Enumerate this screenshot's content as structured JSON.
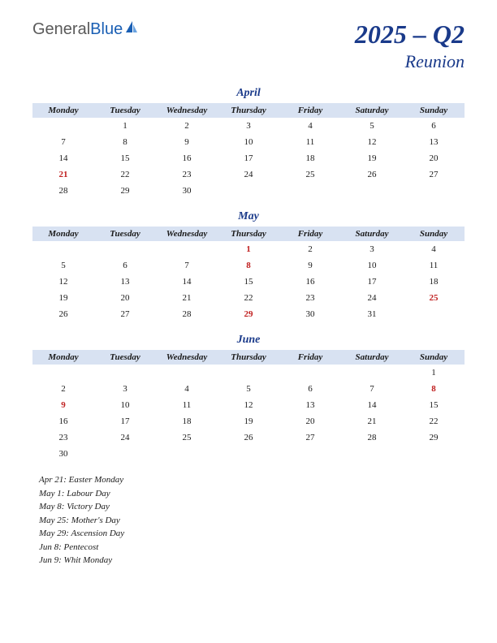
{
  "logo": {
    "part1": "General",
    "part2": "Blue"
  },
  "header": {
    "quarter": "2025 – Q2",
    "region": "Reunion"
  },
  "weekdays": [
    "Monday",
    "Tuesday",
    "Wednesday",
    "Thursday",
    "Friday",
    "Saturday",
    "Sunday"
  ],
  "months": [
    {
      "name": "April",
      "weeks": [
        [
          null,
          1,
          2,
          3,
          4,
          5,
          6
        ],
        [
          7,
          8,
          9,
          10,
          11,
          12,
          13
        ],
        [
          14,
          15,
          16,
          17,
          18,
          19,
          20
        ],
        [
          21,
          22,
          23,
          24,
          25,
          26,
          27
        ],
        [
          28,
          29,
          30,
          null,
          null,
          null,
          null
        ]
      ],
      "holidays": [
        21
      ]
    },
    {
      "name": "May",
      "weeks": [
        [
          null,
          null,
          null,
          1,
          2,
          3,
          4
        ],
        [
          5,
          6,
          7,
          8,
          9,
          10,
          11
        ],
        [
          12,
          13,
          14,
          15,
          16,
          17,
          18
        ],
        [
          19,
          20,
          21,
          22,
          23,
          24,
          25
        ],
        [
          26,
          27,
          28,
          29,
          30,
          31,
          null
        ]
      ],
      "holidays": [
        1,
        8,
        25,
        29
      ]
    },
    {
      "name": "June",
      "weeks": [
        [
          null,
          null,
          null,
          null,
          null,
          null,
          1
        ],
        [
          2,
          3,
          4,
          5,
          6,
          7,
          8
        ],
        [
          9,
          10,
          11,
          12,
          13,
          14,
          15
        ],
        [
          16,
          17,
          18,
          19,
          20,
          21,
          22
        ],
        [
          23,
          24,
          25,
          26,
          27,
          28,
          29
        ],
        [
          30,
          null,
          null,
          null,
          null,
          null,
          null
        ]
      ],
      "holidays": [
        8,
        9
      ]
    }
  ],
  "holiday_list": [
    "Apr 21: Easter Monday",
    "May 1: Labour Day",
    "May 8: Victory Day",
    "May 25: Mother's Day",
    "May 29: Ascension Day",
    "Jun 8: Pentecost",
    "Jun 9: Whit Monday"
  ],
  "colors": {
    "header_bg": "#d8e2f2",
    "title_color": "#1a3a8a",
    "holiday_color": "#c02020",
    "text_color": "#1a1a1a"
  },
  "typography": {
    "title_fontsize": 32,
    "region_fontsize": 22,
    "month_fontsize": 14,
    "weekday_fontsize": 11,
    "cell_fontsize": 11,
    "holiday_list_fontsize": 11
  }
}
